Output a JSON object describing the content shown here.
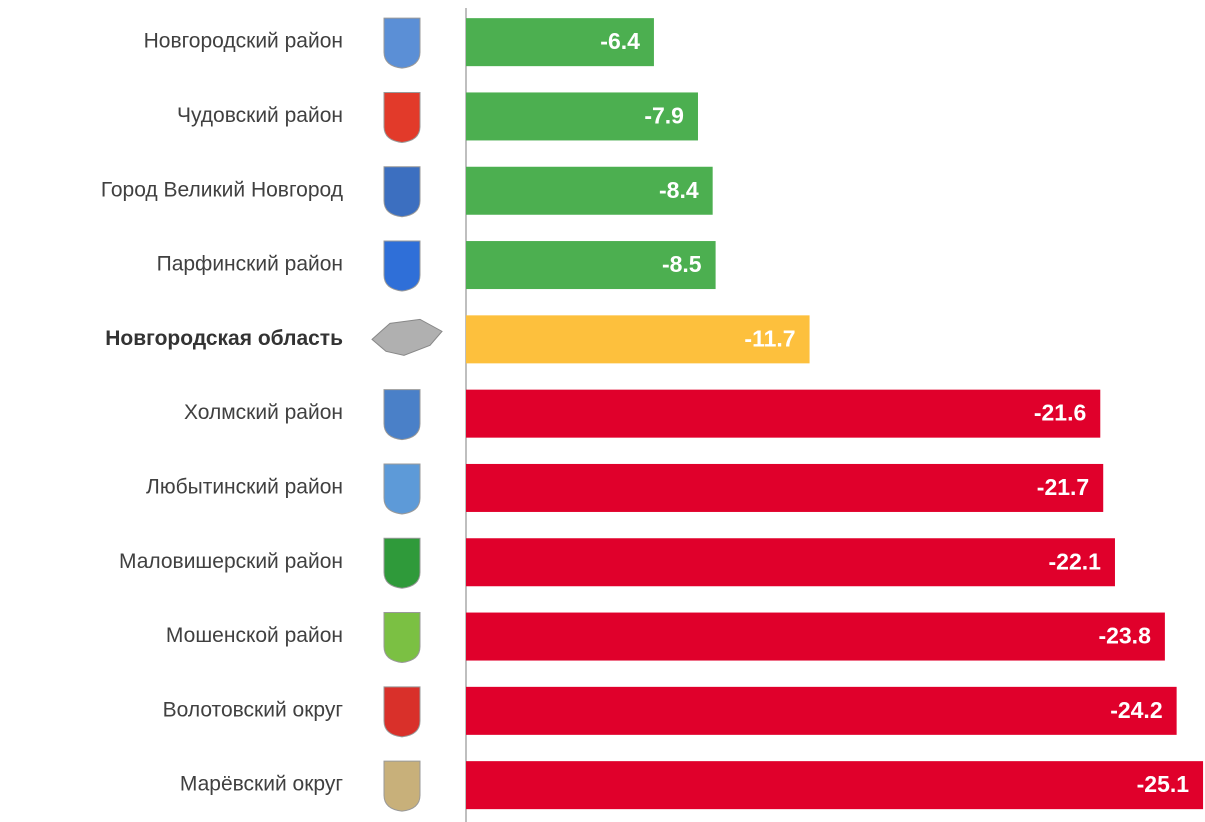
{
  "chart_data": {
    "type": "bar",
    "orientation": "horizontal",
    "categories": [
      "Новгородский район",
      "Чудовский район",
      "Город Великий Новгород",
      "Парфинский район",
      "Новгородская область",
      "Холмский район",
      "Любытинский район",
      "Маловишерский район",
      "Мошенской район",
      "Волотовский округ",
      "Марёвский округ"
    ],
    "values": [
      -6.4,
      -7.9,
      -8.4,
      -8.5,
      -11.7,
      -21.6,
      -21.7,
      -22.1,
      -23.8,
      -24.2,
      -25.1
    ],
    "colors": [
      "#4caf50",
      "#4caf50",
      "#4caf50",
      "#4caf50",
      "#fdc03d",
      "#e0002b",
      "#e0002b",
      "#e0002b",
      "#e0002b",
      "#e0002b",
      "#e0002b"
    ],
    "xlim": [
      0,
      -25.2
    ],
    "emphasized": 4
  }
}
